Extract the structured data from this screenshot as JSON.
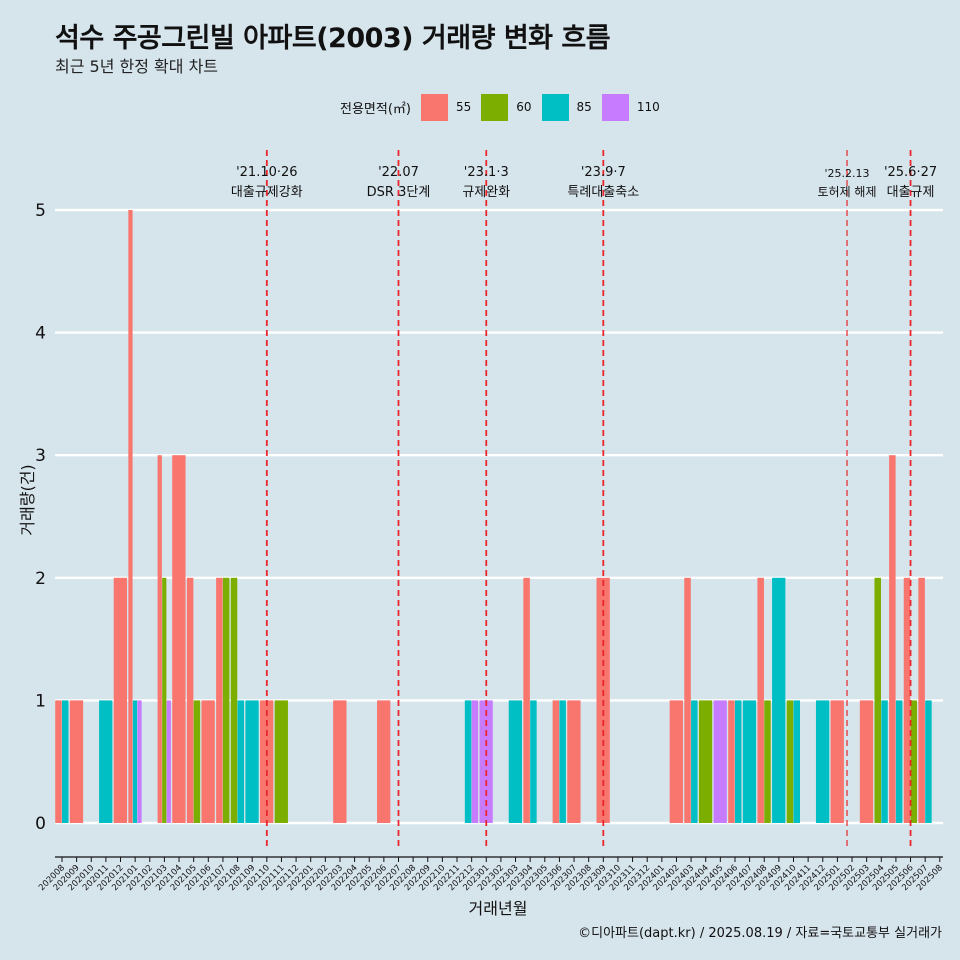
{
  "title": "석수 주공그린빌 아파트(2003) 거래량 변화 흐름",
  "subtitle": "최근 5년 한정 확대 차트",
  "caption": "©디아파트(dapt.kr) / 2025.08.19 / 자료=국토교통부 실거래가",
  "legend": {
    "title": "전용면적(㎡)",
    "items": [
      {
        "label": "55",
        "color": "#F8766D"
      },
      {
        "label": "60",
        "color": "#7CAE00"
      },
      {
        "label": "85",
        "color": "#00BFC4"
      },
      {
        "label": "110",
        "color": "#C77CFF"
      }
    ]
  },
  "chart_data": {
    "type": "bar",
    "xlabel": "거래년월",
    "ylabel": "거래량(건)",
    "ylim": [
      0,
      5
    ],
    "yticks": [
      0,
      1,
      2,
      3,
      4,
      5
    ],
    "grid": true,
    "legend_position": "top",
    "categories": [
      "202008",
      "202009",
      "202010",
      "202011",
      "202012",
      "202101",
      "202102",
      "202103",
      "202104",
      "202105",
      "202106",
      "202107",
      "202108",
      "202109",
      "202110",
      "202111",
      "202112",
      "202201",
      "202202",
      "202203",
      "202204",
      "202205",
      "202206",
      "202207",
      "202208",
      "202209",
      "202210",
      "202211",
      "202212",
      "202301",
      "202302",
      "202303",
      "202304",
      "202305",
      "202306",
      "202307",
      "202308",
      "202309",
      "202310",
      "202311",
      "202312",
      "202401",
      "202402",
      "202403",
      "202404",
      "202405",
      "202406",
      "202407",
      "202408",
      "202409",
      "202410",
      "202411",
      "202412",
      "202501",
      "202502",
      "202503",
      "202504",
      "202505",
      "202506",
      "202507",
      "202508"
    ],
    "series": [
      {
        "name": "55",
        "color": "#F8766D",
        "values": [
          1,
          1,
          0,
          0,
          2,
          5,
          0,
          3,
          3,
          2,
          1,
          2,
          0,
          0,
          1,
          0,
          0,
          0,
          0,
          1,
          0,
          0,
          1,
          0,
          0,
          0,
          0,
          0,
          0,
          0,
          0,
          0,
          2,
          0,
          1,
          1,
          0,
          2,
          0,
          0,
          0,
          0,
          1,
          2,
          0,
          0,
          1,
          0,
          2,
          0,
          0,
          0,
          0,
          1,
          0,
          1,
          0,
          3,
          2,
          2,
          0
        ]
      },
      {
        "name": "60",
        "color": "#7CAE00",
        "values": [
          0,
          0,
          0,
          0,
          0,
          0,
          0,
          2,
          0,
          1,
          0,
          2,
          2,
          0,
          0,
          1,
          0,
          0,
          0,
          0,
          0,
          0,
          0,
          0,
          0,
          0,
          0,
          0,
          0,
          0,
          0,
          0,
          0,
          0,
          0,
          0,
          0,
          0,
          0,
          0,
          0,
          0,
          0,
          0,
          1,
          0,
          0,
          0,
          1,
          0,
          1,
          0,
          0,
          0,
          0,
          0,
          2,
          0,
          1,
          0,
          0
        ]
      },
      {
        "name": "85",
        "color": "#00BFC4",
        "values": [
          1,
          0,
          0,
          1,
          0,
          1,
          0,
          0,
          0,
          0,
          0,
          0,
          1,
          1,
          0,
          0,
          0,
          0,
          0,
          0,
          0,
          0,
          0,
          0,
          0,
          0,
          0,
          0,
          1,
          0,
          0,
          1,
          1,
          0,
          1,
          0,
          0,
          0,
          0,
          0,
          0,
          0,
          0,
          1,
          0,
          0,
          1,
          1,
          0,
          2,
          1,
          0,
          1,
          0,
          0,
          0,
          1,
          1,
          0,
          1,
          0
        ]
      },
      {
        "name": "110",
        "color": "#C77CFF",
        "values": [
          0,
          0,
          0,
          0,
          0,
          1,
          0,
          1,
          0,
          0,
          0,
          0,
          0,
          0,
          0,
          0,
          0,
          0,
          0,
          0,
          0,
          0,
          0,
          0,
          0,
          0,
          0,
          0,
          1,
          1,
          0,
          0,
          0,
          0,
          0,
          0,
          0,
          0,
          0,
          0,
          0,
          0,
          0,
          0,
          0,
          1,
          0,
          0,
          0,
          0,
          0,
          0,
          0,
          0,
          0,
          0,
          0,
          0,
          0,
          0,
          0
        ]
      }
    ],
    "annotations": [
      {
        "date_label": "'21.10·26",
        "text": "대출규제강화",
        "x": "202110"
      },
      {
        "date_label": "'22.07",
        "text": "DSR 3단계",
        "x": "202207"
      },
      {
        "date_label": "'23.1·3",
        "text": "규제완화",
        "x": "202301"
      },
      {
        "date_label": "'23.9·7",
        "text": "특례대출축소",
        "x": "202309"
      },
      {
        "date_label": "'25.2.13",
        "text": "토허제 해제",
        "x": "202502"
      },
      {
        "date_label": "'25.6·27",
        "text": "대출규제",
        "x": "202506"
      }
    ],
    "line_color": "#e8262b"
  }
}
